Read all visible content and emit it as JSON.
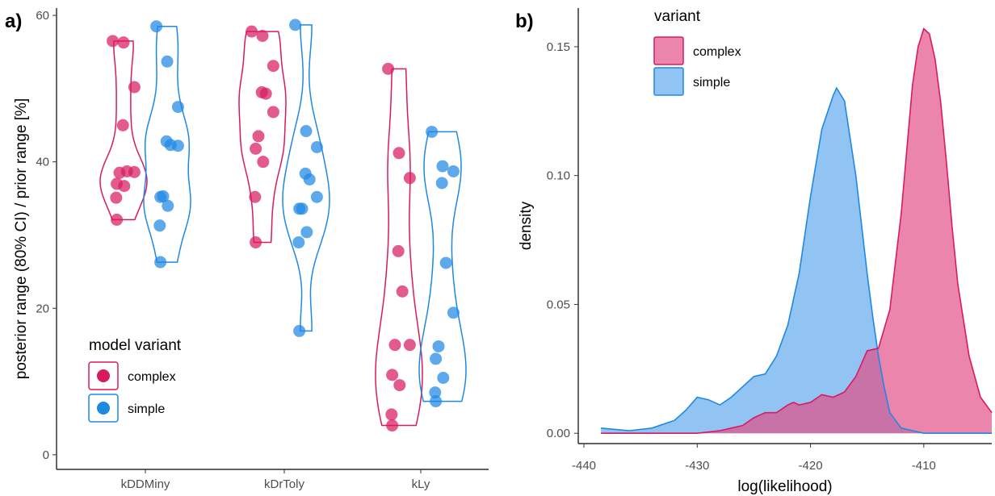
{
  "colors": {
    "complex": "#d81b60",
    "simple": "#1e88e5"
  },
  "chart_data": [
    {
      "panel": "a)",
      "type": "violin+dot",
      "ylabel": "posterior range (80% CI) / prior range [%]",
      "xlabel": "",
      "categories": [
        "kDDMiny",
        "kDrToly",
        "kLy"
      ],
      "ylim": [
        -2,
        61
      ],
      "yticks": [
        0,
        20,
        40,
        60
      ],
      "legend": {
        "title": "model variant",
        "position": "bottom-left",
        "entries": [
          "complex",
          "simple"
        ]
      },
      "series": [
        {
          "name": "complex",
          "values": [
            [
              56.3,
              56.5,
              50.2,
              45.0,
              38.7,
              38.6,
              38.5,
              37.0,
              36.7,
              35.1,
              32.1
            ],
            [
              57.8,
              57.2,
              53.1,
              49.5,
              49.3,
              46.8,
              43.5,
              41.8,
              40.0,
              35.2,
              29.0
            ],
            [
              52.7,
              41.2,
              37.8,
              27.8,
              22.3,
              15.0,
              15.0,
              10.9,
              9.5,
              5.5,
              4.0
            ]
          ]
        },
        {
          "name": "simple",
          "values": [
            [
              58.5,
              53.7,
              47.5,
              42.8,
              42.3,
              42.2,
              35.3,
              35.2,
              34.0,
              31.3,
              26.3
            ],
            [
              58.7,
              44.2,
              42.0,
              38.4,
              37.6,
              35.2,
              33.6,
              33.6,
              30.4,
              29.0,
              16.9
            ],
            [
              44.1,
              39.4,
              38.7,
              37.1,
              26.2,
              19.4,
              14.8,
              13.1,
              10.5,
              8.5,
              7.3
            ]
          ]
        }
      ]
    },
    {
      "panel": "b)",
      "type": "area",
      "xlabel": "log(likelihood)",
      "ylabel": "density",
      "xlim": [
        -440.5,
        -404
      ],
      "ylim": [
        -0.004,
        0.165
      ],
      "xticks": [
        -440,
        -430,
        -420,
        -410
      ],
      "yticks": [
        "0.00",
        "0.05",
        "0.10",
        "0.15"
      ],
      "legend": {
        "title": "variant",
        "position": "top-left",
        "entries": [
          "complex",
          "simple"
        ]
      },
      "series": [
        {
          "name": "simple",
          "x": [
            -438.5,
            -436,
            -434,
            -432,
            -431,
            -430,
            -429,
            -428,
            -427,
            -426,
            -425,
            -424,
            -423,
            -422,
            -421,
            -420,
            -419,
            -418,
            -417.7,
            -417,
            -416,
            -415,
            -414.5,
            -414,
            -413.5,
            -413,
            -412,
            -411,
            -410,
            -409,
            -408,
            -407,
            -406,
            -405,
            -404
          ],
          "values": [
            0.002,
            0.001,
            0.002,
            0.005,
            0.009,
            0.014,
            0.013,
            0.011,
            0.014,
            0.018,
            0.022,
            0.023,
            0.03,
            0.042,
            0.062,
            0.092,
            0.118,
            0.131,
            0.134,
            0.129,
            0.1,
            0.062,
            0.045,
            0.03,
            0.018,
            0.008,
            0.002,
            0.001,
            0.0,
            0.0,
            0.0,
            0.0,
            0.0,
            0.0,
            0.0
          ]
        },
        {
          "name": "complex",
          "x": [
            -438.5,
            -434,
            -432,
            -430,
            -428,
            -427,
            -426,
            -425,
            -424,
            -423,
            -422,
            -421.5,
            -421,
            -420,
            -419,
            -418,
            -417,
            -416,
            -415,
            -414,
            -413,
            -412,
            -411.5,
            -411,
            -410.5,
            -410,
            -409.5,
            -409,
            -408.5,
            -408,
            -407.5,
            -407,
            -406,
            -405,
            -404
          ],
          "values": [
            0.0,
            0.0,
            0.0,
            0.0,
            0.001,
            0.002,
            0.003,
            0.006,
            0.008,
            0.008,
            0.011,
            0.012,
            0.011,
            0.012,
            0.015,
            0.014,
            0.016,
            0.022,
            0.032,
            0.033,
            0.048,
            0.085,
            0.11,
            0.135,
            0.15,
            0.157,
            0.155,
            0.145,
            0.128,
            0.105,
            0.08,
            0.058,
            0.03,
            0.014,
            0.008
          ]
        }
      ]
    }
  ]
}
